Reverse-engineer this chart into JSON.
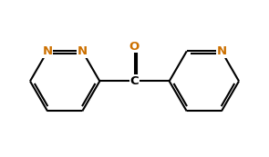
{
  "background_color": "#ffffff",
  "bond_color": "#000000",
  "atom_colors": {
    "N": "#cc7000",
    "O": "#cc7000",
    "C": "#000000"
  },
  "figsize": [
    2.95,
    1.73
  ],
  "dpi": 100,
  "lw": 1.5,
  "font_size": 9.5,
  "xlim": [
    -0.5,
    9.5
  ],
  "ylim": [
    -0.3,
    5.5
  ]
}
